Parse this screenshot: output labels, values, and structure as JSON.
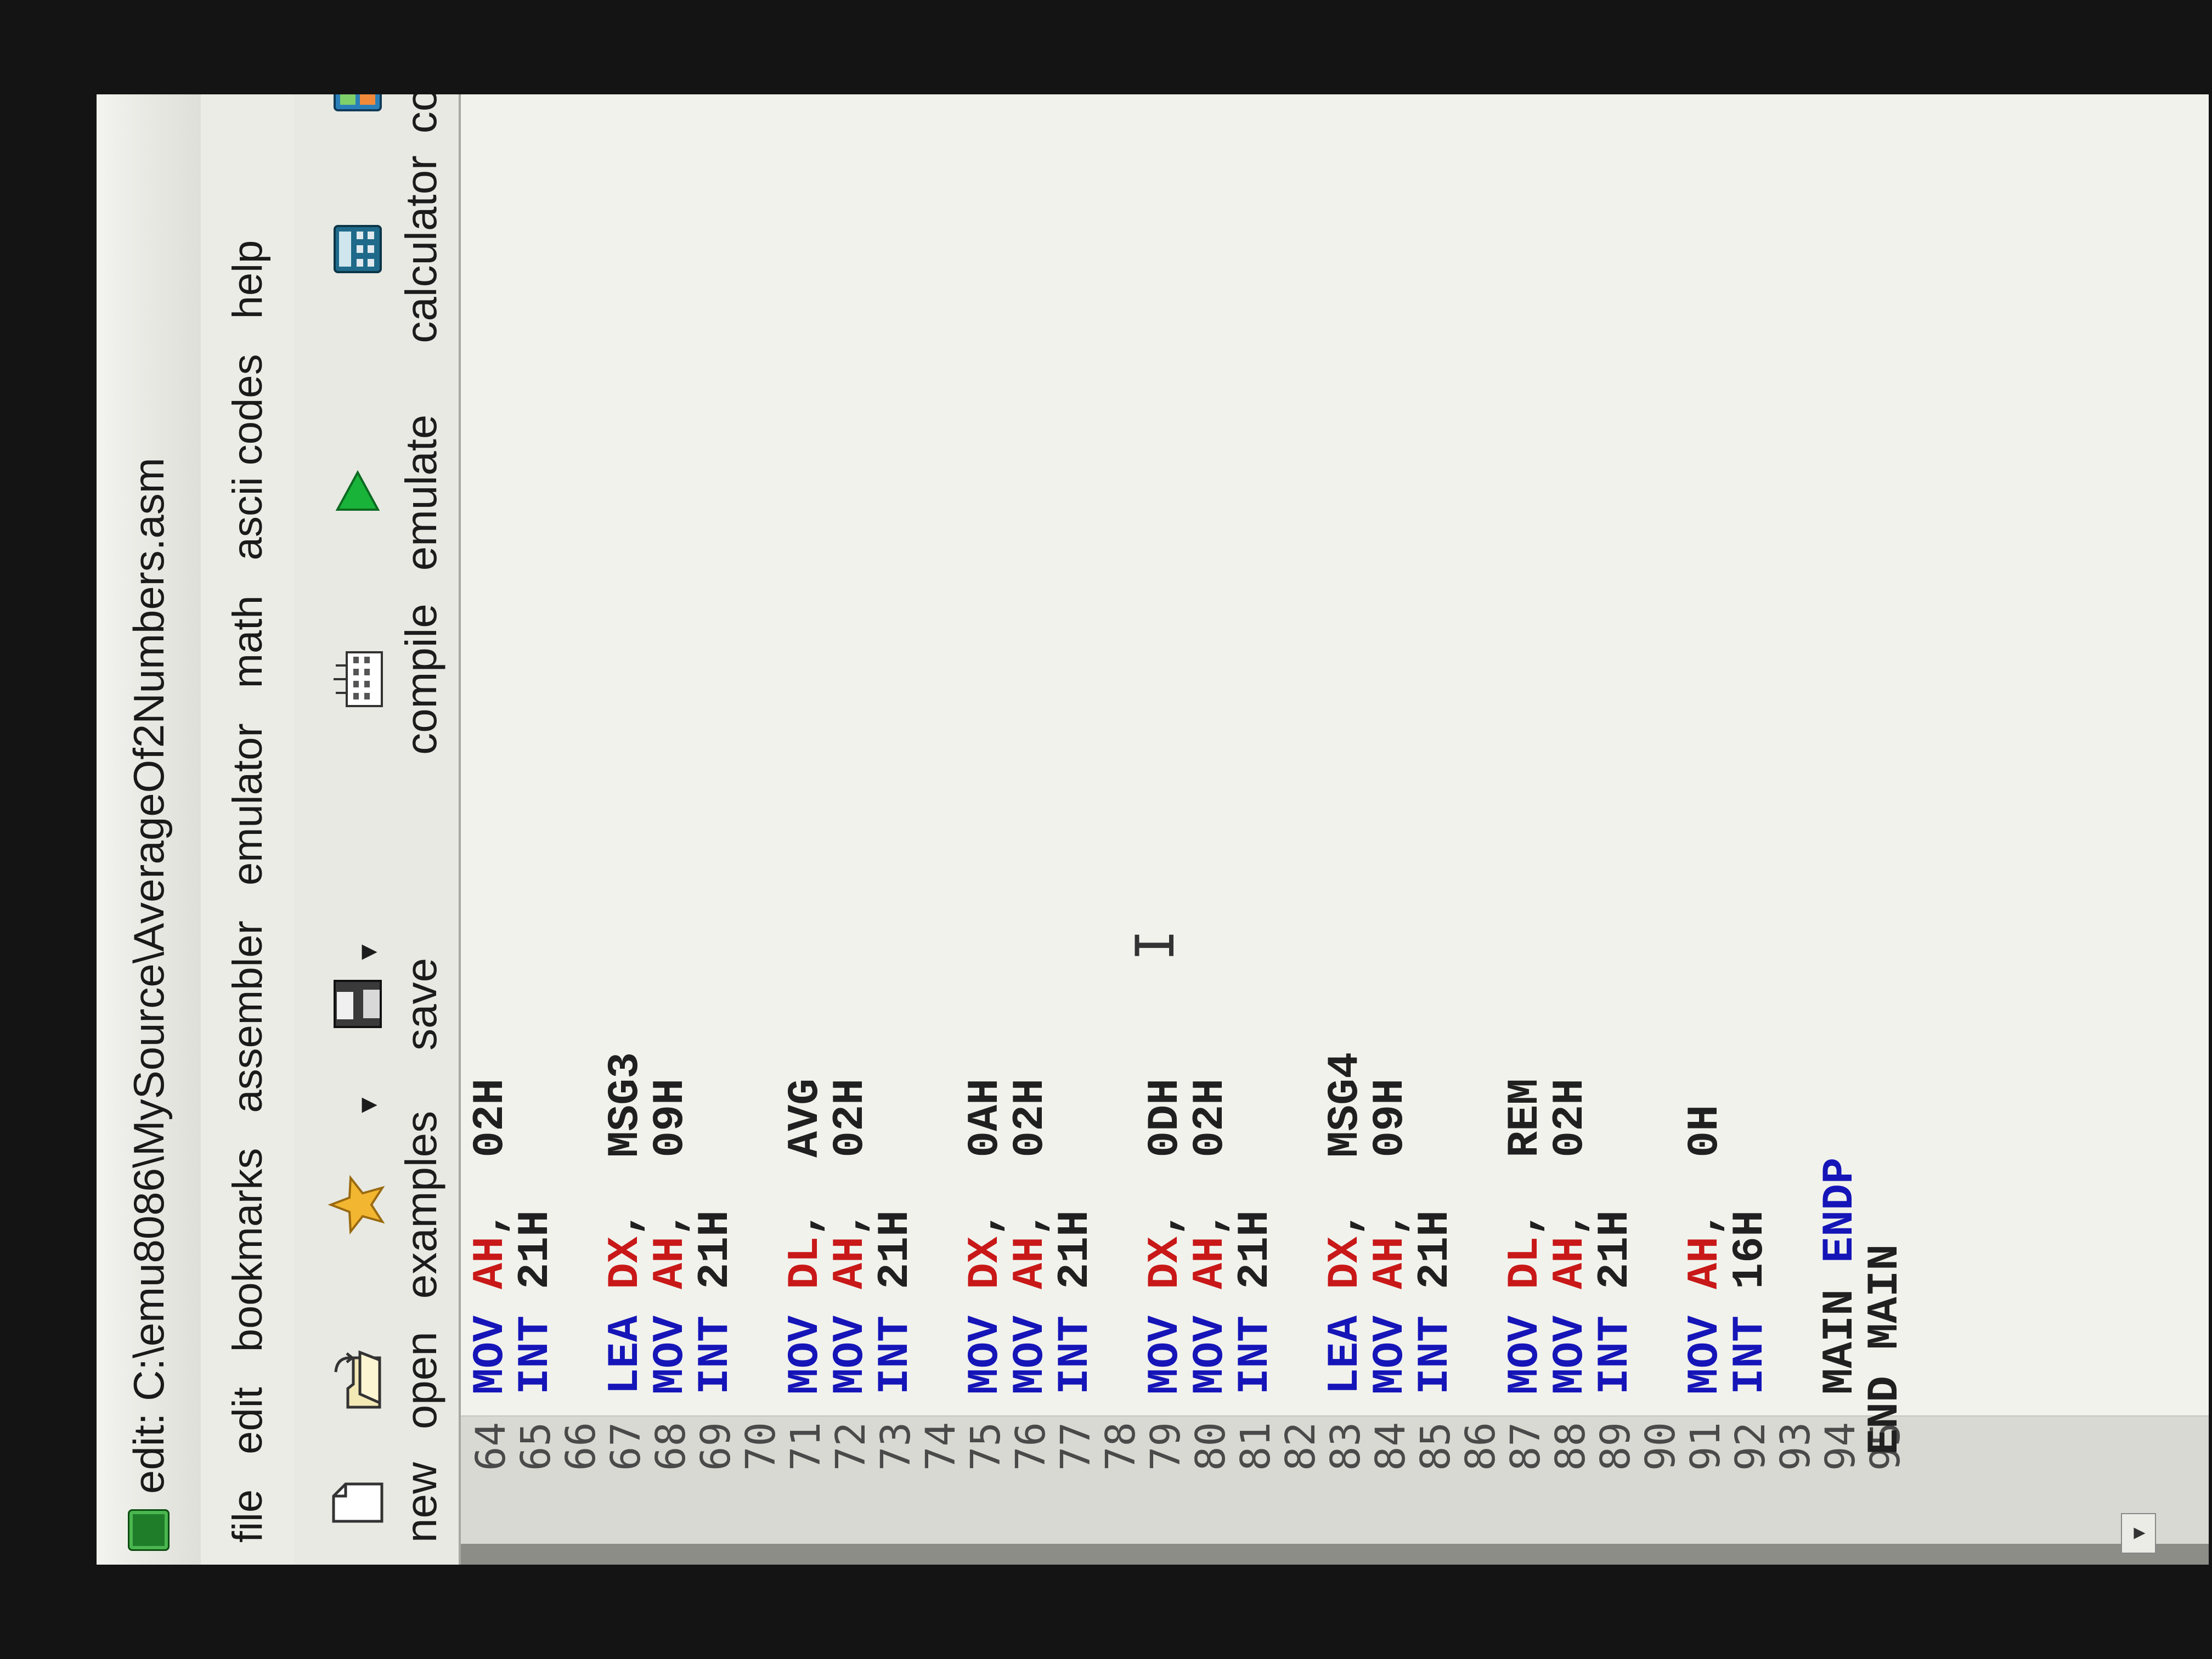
{
  "window": {
    "title": "edit: C:\\emu8086\\MySource\\AverageOf2Numbers.asm"
  },
  "menu": [
    "file",
    "edit",
    "bookmarks",
    "assembler",
    "emulator",
    "math",
    "ascii codes",
    "help"
  ],
  "toolbar": {
    "new": "new",
    "open": "open",
    "examples": "examples",
    "save": "save",
    "compile": "compile",
    "emulate": "emulate",
    "calculator": "calculator",
    "convertor": "conv"
  },
  "editor": {
    "line_numbers": [
      "64",
      "65",
      "66",
      "67",
      "68",
      "69",
      "70",
      "71",
      "72",
      "73",
      "74",
      "75",
      "76",
      "77",
      "78",
      "79",
      "80",
      "81",
      "82",
      "83",
      "84",
      "85",
      "86",
      "87",
      "88",
      "89",
      "90",
      "91",
      "92",
      "93",
      "94",
      "95"
    ],
    "lines": [
      {
        "line": "64",
        "op": "MOV",
        "reg": "AH",
        "sep": ", ",
        "arg": "02H"
      },
      {
        "line": "65",
        "op": "INT",
        "reg": "",
        "sep": "",
        "arg": "21H"
      },
      {
        "line": "67",
        "op": "LEA",
        "reg": "DX",
        "sep": ", ",
        "arg": "MSG3"
      },
      {
        "line": "68",
        "op": "MOV",
        "reg": "AH",
        "sep": ", ",
        "arg": "09H"
      },
      {
        "line": "69",
        "op": "INT",
        "reg": "",
        "sep": "",
        "arg": "21H"
      },
      {
        "line": "71",
        "op": "MOV",
        "reg": "DL",
        "sep": ", ",
        "arg": "AVG"
      },
      {
        "line": "72",
        "op": "MOV",
        "reg": "AH",
        "sep": ", ",
        "arg": "02H"
      },
      {
        "line": "73",
        "op": "INT",
        "reg": "",
        "sep": "",
        "arg": "21H"
      },
      {
        "line": "75",
        "op": "MOV",
        "reg": "DX",
        "sep": ", ",
        "arg": "0AH"
      },
      {
        "line": "76",
        "op": "MOV",
        "reg": "AH",
        "sep": ", ",
        "arg": "02H"
      },
      {
        "line": "77",
        "op": "INT",
        "reg": "",
        "sep": "",
        "arg": "21H"
      },
      {
        "line": "79",
        "op": "MOV",
        "reg": "DX",
        "sep": ", ",
        "arg": "0DH"
      },
      {
        "line": "80",
        "op": "MOV",
        "reg": "AH",
        "sep": ", ",
        "arg": "02H"
      },
      {
        "line": "81",
        "op": "INT",
        "reg": "",
        "sep": "",
        "arg": "21H"
      },
      {
        "line": "83",
        "op": "LEA",
        "reg": "DX",
        "sep": ", ",
        "arg": "MSG4"
      },
      {
        "line": "84",
        "op": "MOV",
        "reg": "AH",
        "sep": ", ",
        "arg": "09H"
      },
      {
        "line": "85",
        "op": "INT",
        "reg": "",
        "sep": "",
        "arg": "21H"
      },
      {
        "line": "87",
        "op": "MOV",
        "reg": "DL",
        "sep": ", ",
        "arg": "REM"
      },
      {
        "line": "88",
        "op": "MOV",
        "reg": "AH",
        "sep": ", ",
        "arg": "02H"
      },
      {
        "line": "89",
        "op": "INT",
        "reg": "",
        "sep": "",
        "arg": "21H"
      },
      {
        "line": "91",
        "op": "MOV",
        "reg": "AH",
        "sep": ", ",
        "arg": "0H"
      },
      {
        "line": "92",
        "op": "INT",
        "reg": "",
        "sep": "",
        "arg": "16H"
      }
    ],
    "endp_line": {
      "name": "MAIN",
      "keyword": "ENDP"
    },
    "end_line": {
      "keyword": "END",
      "name": "MAIN"
    }
  }
}
